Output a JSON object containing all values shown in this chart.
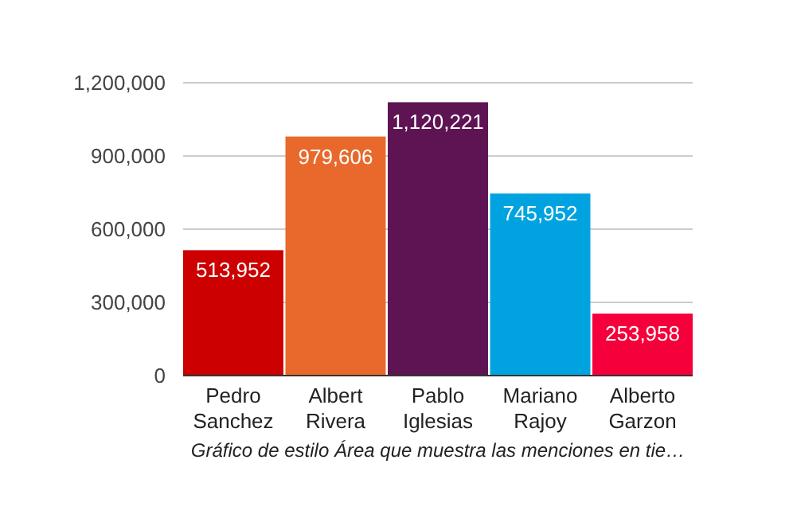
{
  "chart_data": {
    "type": "bar",
    "xlabel": "Gráfico de estilo Área que muestra las menciones en tie…",
    "categories": [
      "Pedro Sanchez",
      "Albert Rivera",
      "Pablo Iglesias",
      "Mariano Rajoy",
      "Alberto Garzon"
    ],
    "values": [
      513952,
      979606,
      1120221,
      745952,
      253958
    ],
    "colors": [
      "#cc0000",
      "#e8692b",
      "#5e1353",
      "#00a3e0",
      "#f5003a"
    ],
    "ylim": [
      0,
      1200000
    ],
    "yticks": [
      {
        "value": 0,
        "label": "0"
      },
      {
        "value": 300000,
        "label": "300,000"
      },
      {
        "value": 600000,
        "label": "600,000"
      },
      {
        "value": 900000,
        "label": "900,000"
      },
      {
        "value": 1200000,
        "label": "1,200,000"
      }
    ],
    "grid": "y",
    "value_labels": [
      "513,952",
      "979,606",
      "1,120,221",
      "745,952",
      "253,958"
    ]
  }
}
